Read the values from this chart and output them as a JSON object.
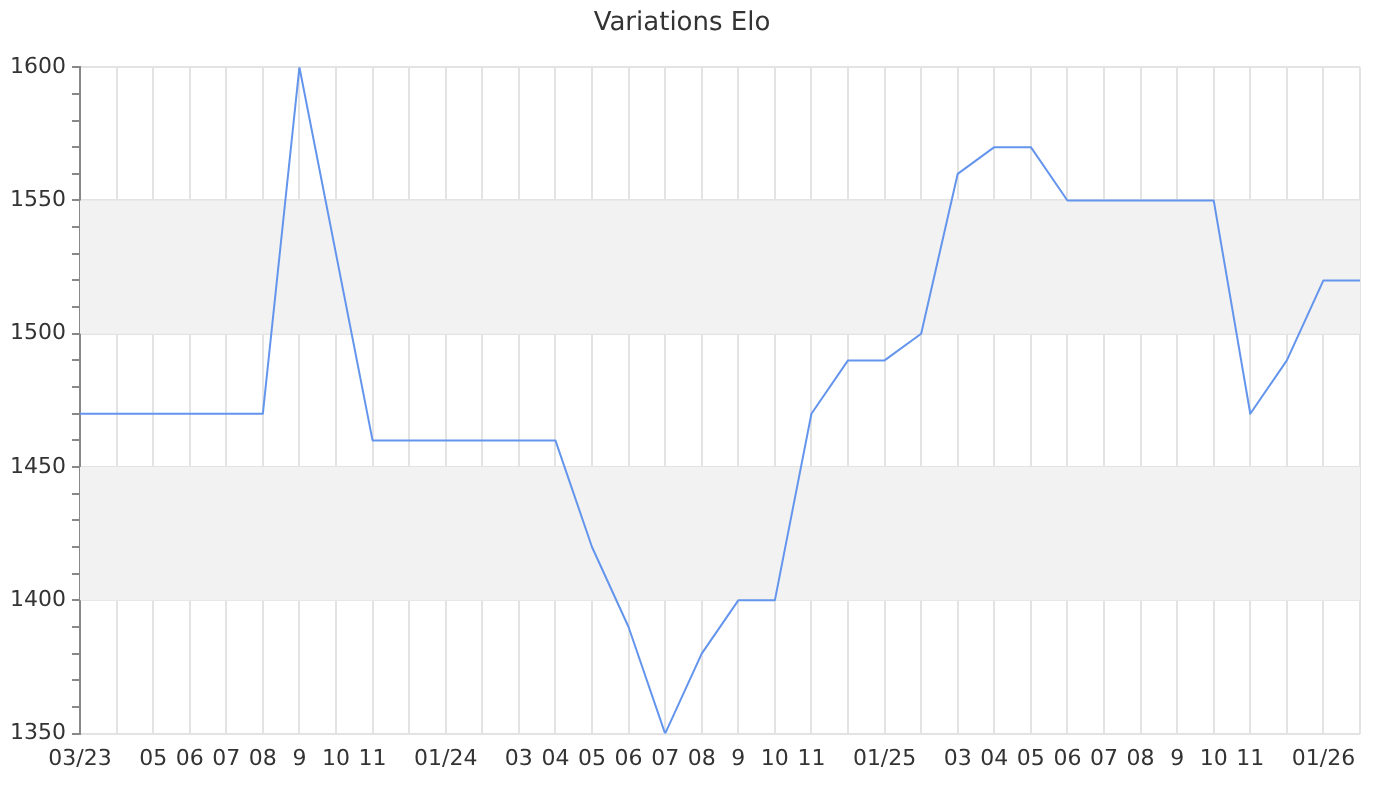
{
  "chart_data": {
    "type": "line",
    "title": "Variations Elo",
    "categories": [
      "03/23",
      null,
      "05",
      "06",
      "07",
      "08",
      "9",
      "10",
      "11",
      null,
      "01/24",
      null,
      "03",
      "04",
      "05",
      "06",
      "07",
      "08",
      "9",
      "10",
      "11",
      null,
      "01/25",
      null,
      "03",
      "04",
      "05",
      "06",
      "07",
      "08",
      "9",
      "10",
      "11",
      null,
      "01/26",
      null
    ],
    "series": [
      {
        "color": "#6495ed",
        "values": [
          1470,
          1470,
          1470,
          1470,
          1470,
          1470,
          1600,
          1530,
          1460,
          1460,
          1460,
          1460,
          1460,
          1460,
          1420,
          1390,
          1350,
          1380,
          1400,
          1400,
          1470,
          1490,
          1490,
          1500,
          1560,
          1570,
          1570,
          1550,
          1550,
          1550,
          1550,
          1550,
          1470,
          1490,
          1520,
          1520
        ]
      }
    ],
    "ylim": [
      1350,
      1600
    ],
    "yticks": [
      1350,
      {
        "value": 1360,
        "label": null
      },
      {
        "value": 1370,
        "label": null
      },
      {
        "value": 1380,
        "label": null
      },
      {
        "value": 1390,
        "label": null
      },
      1400,
      {
        "value": 1410,
        "label": null
      },
      {
        "value": 1420,
        "label": null
      },
      {
        "value": 1430,
        "label": null
      },
      {
        "value": 1440,
        "label": null
      },
      1450,
      {
        "value": 1460,
        "label": null
      },
      {
        "value": 1470,
        "label": null
      },
      {
        "value": 1480,
        "label": null
      },
      {
        "value": 1490,
        "label": null
      },
      1500,
      {
        "value": 1510,
        "label": null
      },
      {
        "value": 1520,
        "label": null
      },
      {
        "value": 1530,
        "label": null
      },
      {
        "value": 1540,
        "label": null
      },
      1550,
      {
        "value": 1560,
        "label": null
      },
      {
        "value": 1570,
        "label": null
      },
      {
        "value": 1580,
        "label": null
      },
      {
        "value": 1590,
        "label": null
      },
      1600
    ],
    "bands": [
      {
        "axis": "y",
        "from": 1400,
        "to": 1450,
        "color": "#f2f2f2"
      },
      {
        "axis": "y",
        "from": 1500,
        "to": 1550,
        "color": "#f2f2f2"
      }
    ],
    "grid": true,
    "legend": false,
    "marker": "none",
    "line_style": "solid"
  }
}
